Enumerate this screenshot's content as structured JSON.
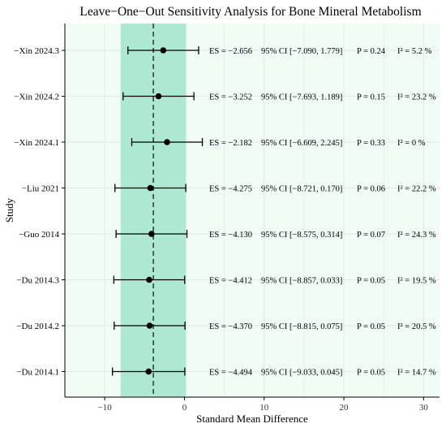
{
  "chart_data": {
    "type": "forest",
    "title": "Leave−One−Out Sensitivity Analysis for Bone Mineral Metabolism",
    "xlabel": "Standard Mean Difference",
    "ylabel": "Study",
    "xlim": [
      -15,
      32
    ],
    "x_ticks": [
      -10,
      0,
      10,
      20,
      30
    ],
    "x_tick_labels": [
      "−10",
      "0",
      "10",
      "20",
      "30"
    ],
    "grid": true,
    "reference_line_x": -3.9,
    "shaded_band_x": [
      -8.0,
      0.2
    ],
    "colors": {
      "panel_background": "#f1fcf5",
      "shaded_band": "#ade8d3",
      "point": "#000000",
      "grid": "#dfe9e3"
    },
    "studies": [
      {
        "label": "−Xin 2024.3",
        "es": -2.656,
        "ci": [
          -7.09,
          1.779
        ],
        "es_text": "ES = −2.656",
        "ci_text": "95% CI [−7.090, 1.779]",
        "p_text": "P = 0.24",
        "i2_text": "I² = 5.2 %"
      },
      {
        "label": "−Xin 2024.2",
        "es": -3.252,
        "ci": [
          -7.693,
          1.189
        ],
        "es_text": "ES = −3.252",
        "ci_text": "95% CI [−7.693, 1.189]",
        "p_text": "P = 0.15",
        "i2_text": "I² = 23.2 %"
      },
      {
        "label": "−Xin 2024.1",
        "es": -2.182,
        "ci": [
          -6.609,
          2.245
        ],
        "es_text": "ES = −2.182",
        "ci_text": "95% CI [−6.609, 2.245]",
        "p_text": "P = 0.33",
        "i2_text": "I² = 0 %"
      },
      {
        "label": "−Liu 2021",
        "es": -4.275,
        "ci": [
          -8.721,
          0.17
        ],
        "es_text": "ES = −4.275",
        "ci_text": "95% CI [−8.721, 0.170]",
        "p_text": "P = 0.06",
        "i2_text": "I² = 22.2 %"
      },
      {
        "label": "−Guo 2014",
        "es": -4.13,
        "ci": [
          -8.575,
          0.314
        ],
        "es_text": "ES = −4.130",
        "ci_text": "95% CI [−8.575, 0.314]",
        "p_text": "P = 0.07",
        "i2_text": "I² = 24.3 %"
      },
      {
        "label": "−Du 2014.3",
        "es": -4.412,
        "ci": [
          -8.857,
          0.033
        ],
        "es_text": "ES = −4.412",
        "ci_text": "95% CI [−8.857, 0.033]",
        "p_text": "P = 0.05",
        "i2_text": "I² = 19.5 %"
      },
      {
        "label": "−Du 2014.2",
        "es": -4.37,
        "ci": [
          -8.815,
          0.075
        ],
        "es_text": "ES = −4.370",
        "ci_text": "95% CI [−8.815, 0.075]",
        "p_text": "P = 0.05",
        "i2_text": "I² = 20.5 %"
      },
      {
        "label": "−Du 2014.1",
        "es": -4.494,
        "ci": [
          -9.033,
          0.045
        ],
        "es_text": "ES = −4.494",
        "ci_text": "95% CI [−9.033, 0.045]",
        "p_text": "P = 0.05",
        "i2_text": "I² = 14.7 %"
      }
    ]
  }
}
